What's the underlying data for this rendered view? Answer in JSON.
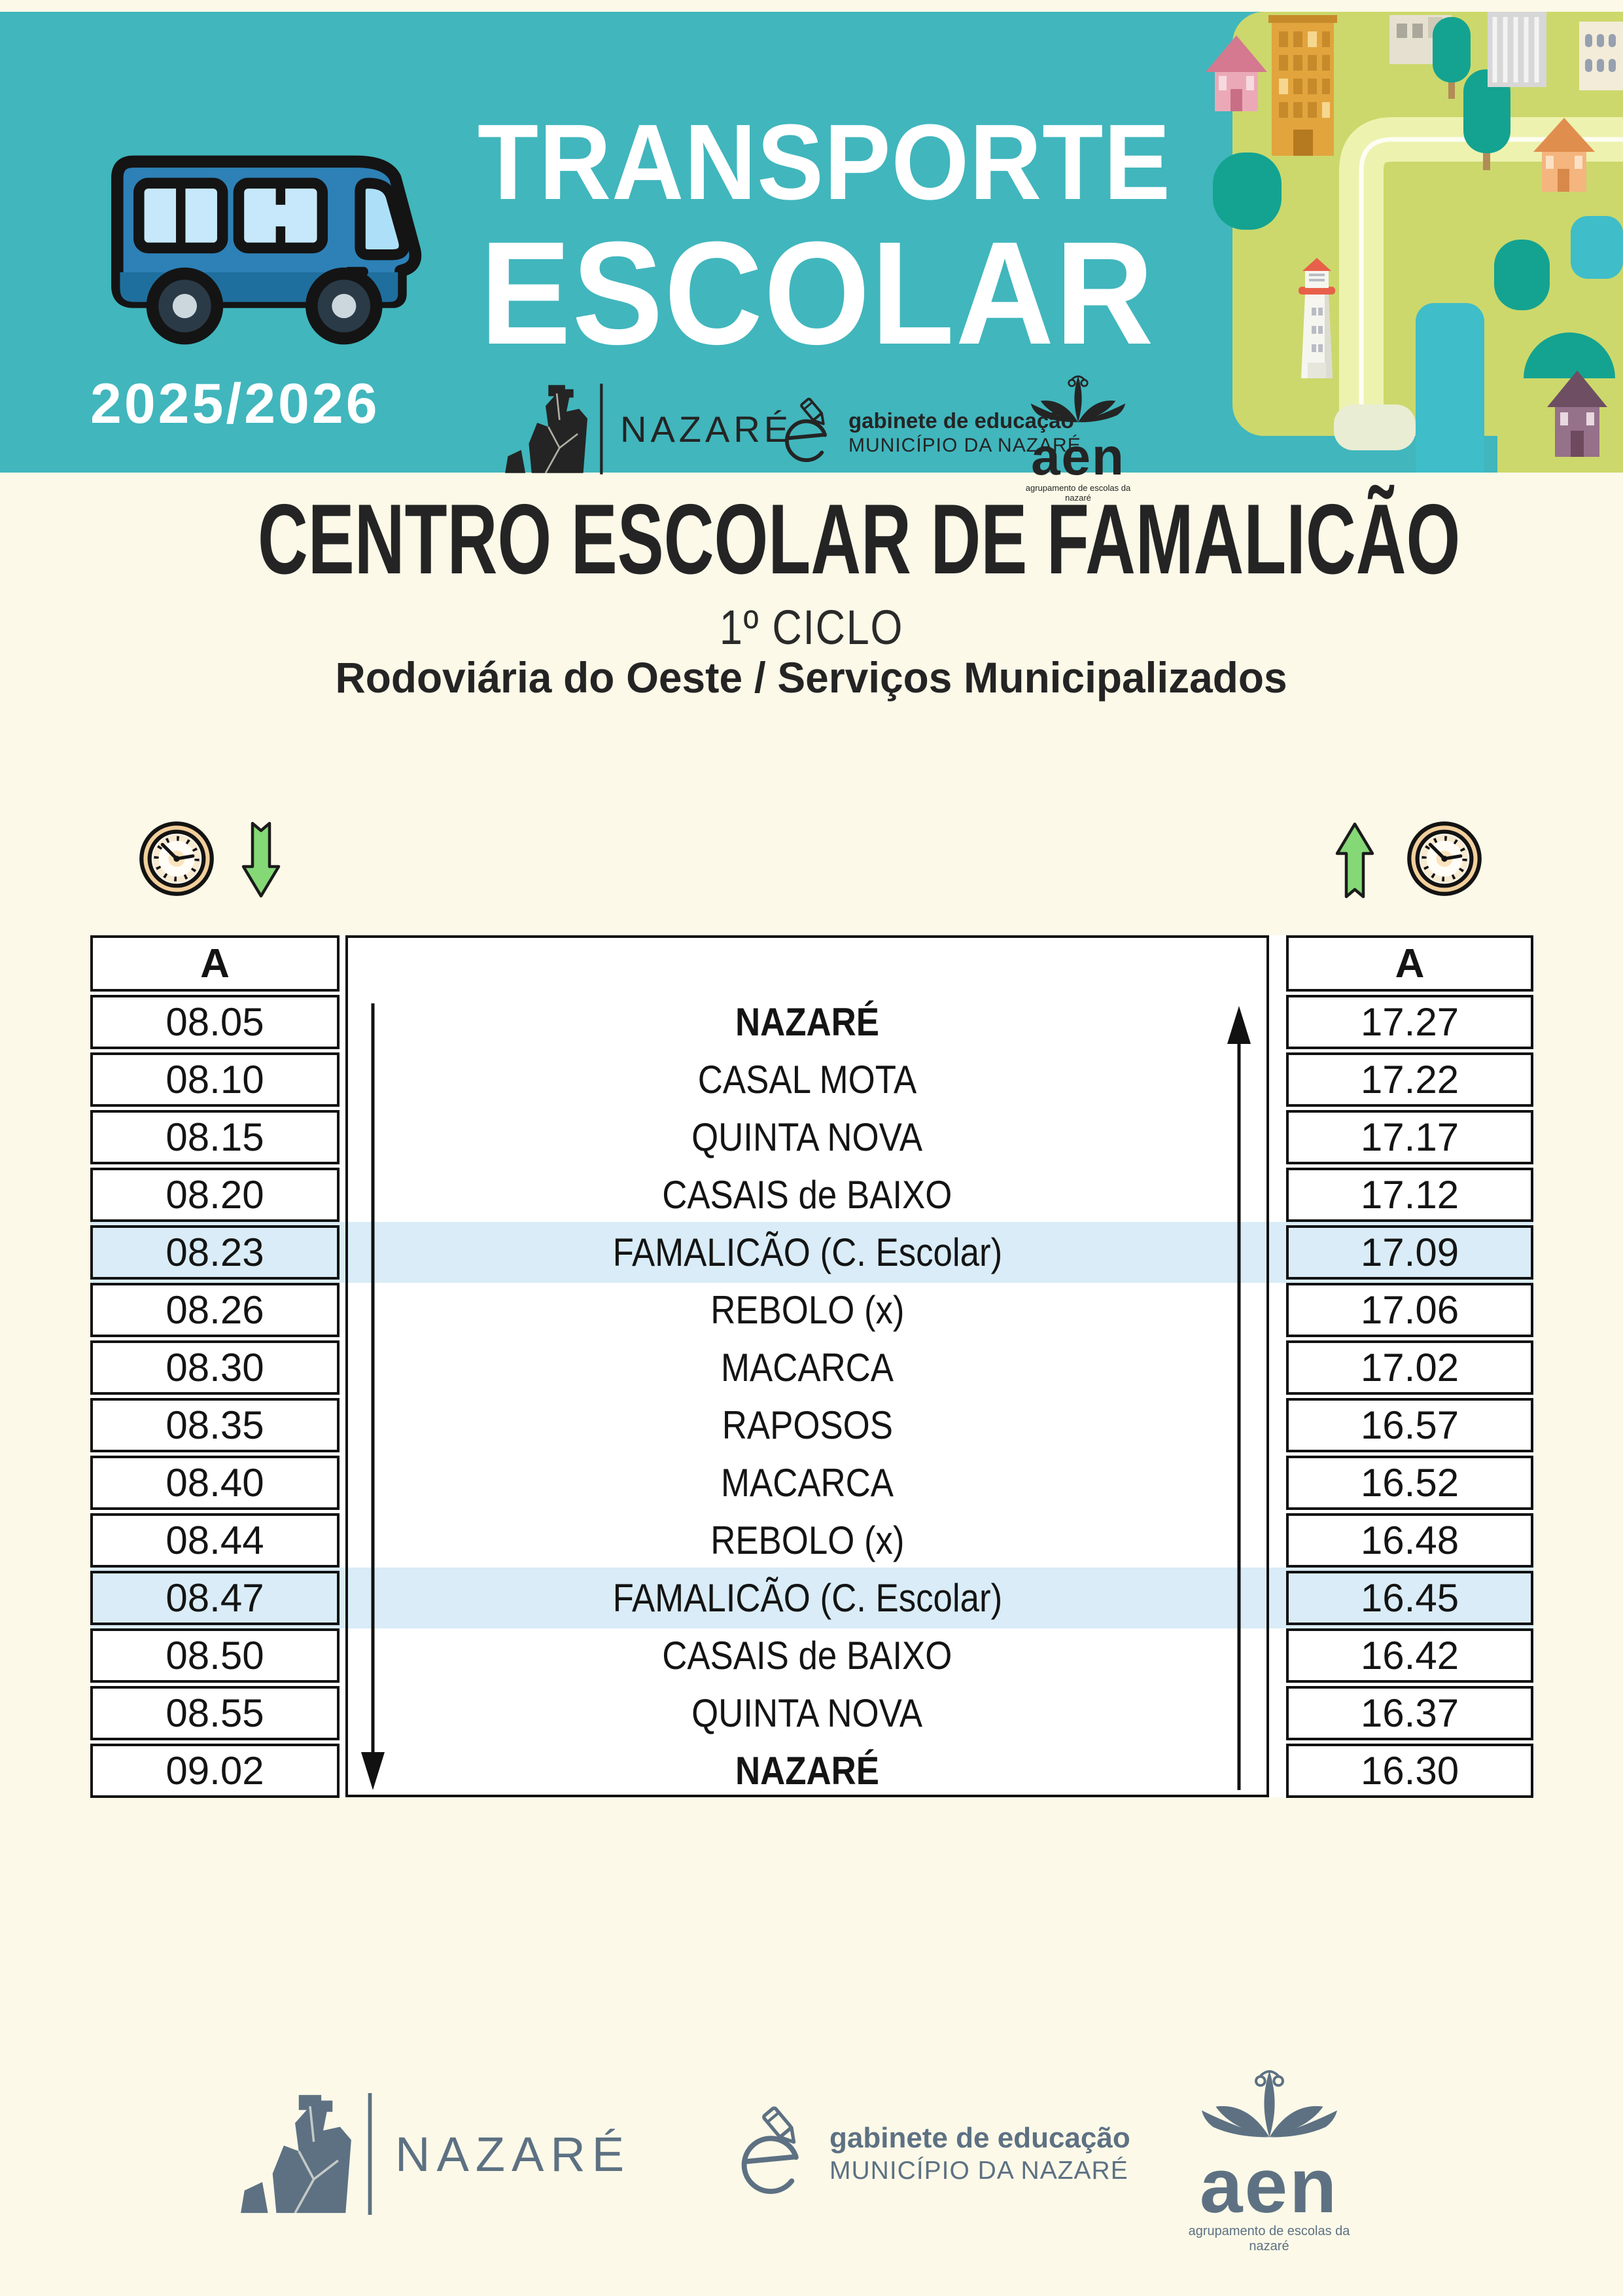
{
  "banner": {
    "title_line1": "TRANSPORTE",
    "title_line2": "ESCOLAR",
    "school_year": "2025/2026"
  },
  "heading": {
    "school": "CENTRO ESCOLAR DE FAMALICÃO",
    "cycle": "1º CICLO",
    "operator": "Rodoviária do Oeste / Serviços Municipalizados"
  },
  "logos": {
    "nazare": "NAZARÉ",
    "gabinete_line1": "gabinete de educação",
    "gabinete_line2": "MUNICÍPIO DA NAZARÉ",
    "aen": "aen",
    "aen_tagline": "agrupamento de escolas da nazaré"
  },
  "icons": {
    "left": [
      "clock-icon",
      "arrow-down-icon"
    ],
    "right": [
      "arrow-up-icon",
      "clock-icon"
    ]
  },
  "timetable": {
    "morning_header": "A",
    "evening_header": "A",
    "rows": [
      {
        "morning": "08.05",
        "stop": "NAZARÉ",
        "evening": "17.27",
        "emphasis": true,
        "highlight": false
      },
      {
        "morning": "08.10",
        "stop": "CASAL MOTA",
        "evening": "17.22",
        "emphasis": false,
        "highlight": false
      },
      {
        "morning": "08.15",
        "stop": "QUINTA NOVA",
        "evening": "17.17",
        "emphasis": false,
        "highlight": false
      },
      {
        "morning": "08.20",
        "stop": "CASAIS de BAIXO",
        "evening": "17.12",
        "emphasis": false,
        "highlight": false
      },
      {
        "morning": "08.23",
        "stop": "FAMALICÃO (C. Escolar)",
        "evening": "17.09",
        "emphasis": false,
        "highlight": true
      },
      {
        "morning": "08.26",
        "stop": "REBOLO (x)",
        "evening": "17.06",
        "emphasis": false,
        "highlight": false
      },
      {
        "morning": "08.30",
        "stop": "MACARCA",
        "evening": "17.02",
        "emphasis": false,
        "highlight": false
      },
      {
        "morning": "08.35",
        "stop": "RAPOSOS",
        "evening": "16.57",
        "emphasis": false,
        "highlight": false
      },
      {
        "morning": "08.40",
        "stop": "MACARCA",
        "evening": "16.52",
        "emphasis": false,
        "highlight": false
      },
      {
        "morning": "08.44",
        "stop": "REBOLO (x)",
        "evening": "16.48",
        "emphasis": false,
        "highlight": false
      },
      {
        "morning": "08.47",
        "stop": "FAMALICÃO (C. Escolar)",
        "evening": "16.45",
        "emphasis": false,
        "highlight": true
      },
      {
        "morning": "08.50",
        "stop": "CASAIS de BAIXO",
        "evening": "16.42",
        "emphasis": false,
        "highlight": false
      },
      {
        "morning": "08.55",
        "stop": "QUINTA NOVA",
        "evening": "16.37",
        "emphasis": false,
        "highlight": false
      },
      {
        "morning": "09.02",
        "stop": "NAZARÉ",
        "evening": "16.30",
        "emphasis": true,
        "highlight": false
      }
    ]
  },
  "colors": {
    "banner_teal": "#41b6bd",
    "page_cream": "#fcf9e8",
    "highlight_blue": "#d9ecf7",
    "ink": "#141414",
    "logo_slate": "#5d7183",
    "arrow_green": "#85d876",
    "bus_blue": "#2d81b7",
    "bus_blue_dark": "#1f6f9e",
    "bus_window": "#c6e8fa",
    "map_land": "#ccd86b",
    "map_road": "#edf2af",
    "map_tree": "#14a391",
    "clock_rim": "#f2cf9b"
  }
}
